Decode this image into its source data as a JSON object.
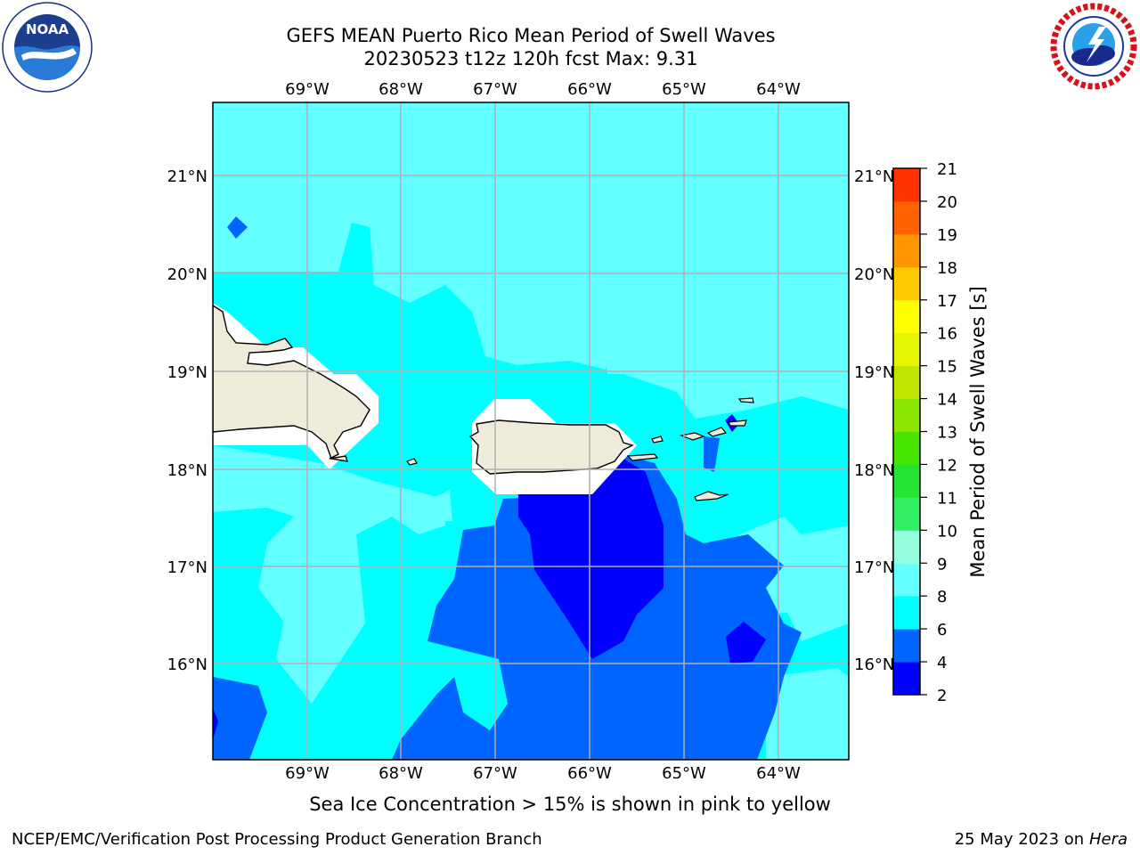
{
  "title_line1": "GEFS MEAN Puerto Rico Mean Period of Swell Waves",
  "title_line2": "20230523 t12z 120h fcst   Max: 9.31",
  "map": {
    "lon_labels": [
      "69°W",
      "68°W",
      "67°W",
      "66°W",
      "65°W",
      "64°W"
    ],
    "lat_labels": [
      "21°N",
      "20°N",
      "19°N",
      "18°N",
      "17°N",
      "16°N"
    ],
    "land_color": "#efebdb",
    "mask_color": "#ffffff"
  },
  "colorbar": {
    "label": "Mean Period of Swell Waves [s]",
    "ticks": [
      "2",
      "4",
      "6",
      "8",
      "9",
      "10",
      "11",
      "12",
      "13",
      "14",
      "15",
      "16",
      "17",
      "18",
      "19",
      "20",
      "21"
    ],
    "colors": [
      "#0000ff",
      "#0064ff",
      "#00ffff",
      "#64ffff",
      "#96ffe0",
      "#32f064",
      "#24e632",
      "#46e600",
      "#8ce600",
      "#bee600",
      "#e6f500",
      "#ffff00",
      "#ffc800",
      "#ff9600",
      "#ff6400",
      "#ff3200",
      "#ff0000"
    ]
  },
  "contour_colors": {
    "c2_4": "#0000ff",
    "c4_6": "#0064ff",
    "c6_8": "#00ffff",
    "c8_9": "#64ffff",
    "c9_10": "#96ffe0"
  },
  "caption": "Sea Ice Concentration > 15% is shown in pink to yellow",
  "credit": "NCEP/EMC/Verification Post Processing Product Generation Branch",
  "date_prefix": "25 May 2023 on",
  "date_host": "Hera"
}
